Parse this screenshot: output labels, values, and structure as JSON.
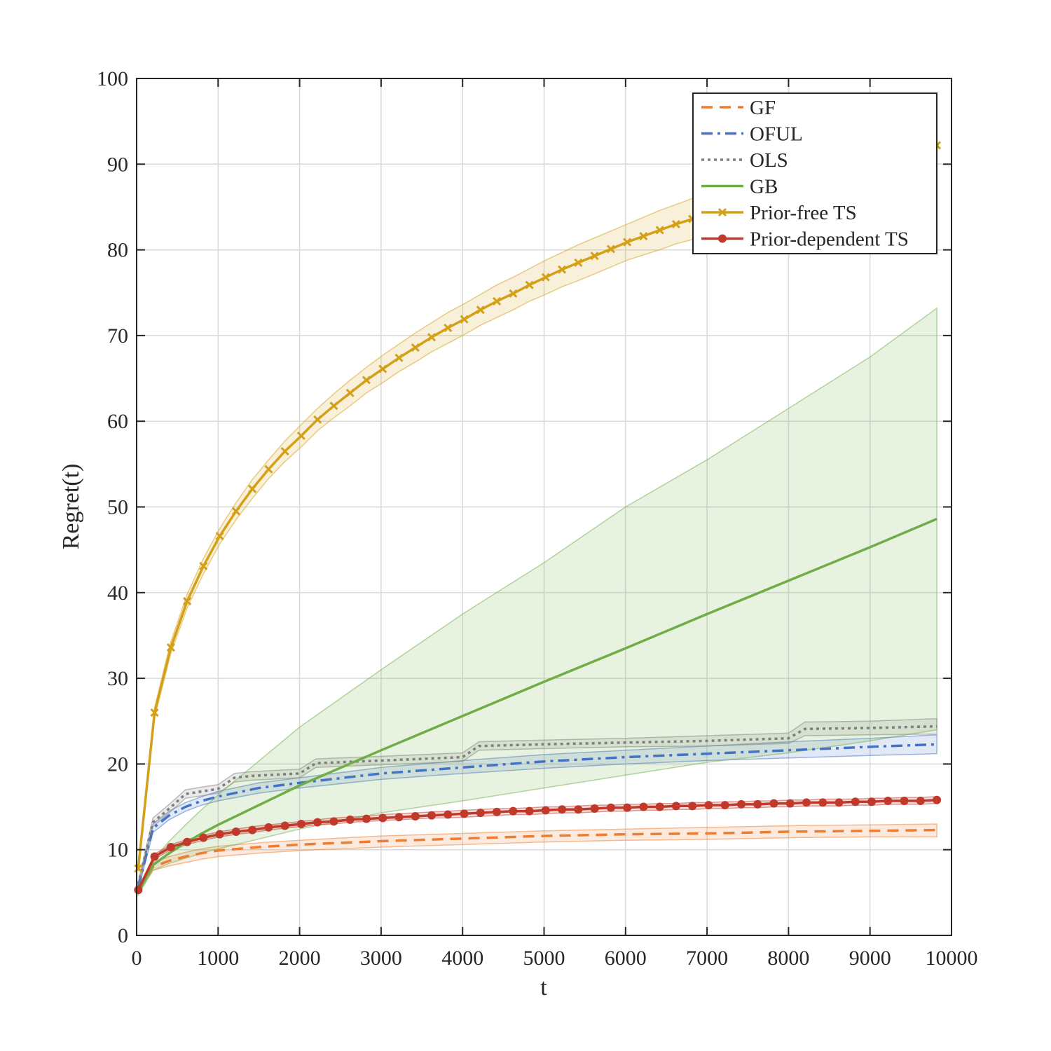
{
  "chart_data": {
    "type": "line",
    "xlabel": "t",
    "ylabel": "Regret(t)",
    "xlim": [
      0,
      10000
    ],
    "ylim": [
      0,
      100
    ],
    "xticks": [
      0,
      1000,
      2000,
      3000,
      4000,
      5000,
      6000,
      7000,
      8000,
      9000,
      10000
    ],
    "yticks": [
      0,
      10,
      20,
      30,
      40,
      50,
      60,
      70,
      80,
      90,
      100
    ],
    "xtick_labels": [
      "0",
      "1000",
      "2000",
      "3000",
      "4000",
      "5000",
      "6000",
      "7000",
      "8000",
      "9000",
      "10000"
    ],
    "ytick_labels": [
      "0",
      "10",
      "20",
      "30",
      "40",
      "50",
      "60",
      "70",
      "80",
      "90",
      "100"
    ],
    "grid": true,
    "legend_position": "top-right",
    "series": [
      {
        "name": "GF",
        "color": "#ED7D31",
        "style": "dashed",
        "marker": "none",
        "x": [
          20,
          200,
          400,
          600,
          800,
          1000,
          1500,
          2000,
          3000,
          4000,
          5000,
          6000,
          7000,
          8000,
          9000,
          9820
        ],
        "y": [
          5.2,
          8.0,
          8.7,
          9.2,
          9.6,
          9.9,
          10.3,
          10.6,
          11.0,
          11.3,
          11.6,
          11.8,
          11.9,
          12.1,
          12.2,
          12.3
        ],
        "band_upper": [
          5.4,
          8.5,
          9.2,
          9.7,
          10.1,
          10.4,
          10.8,
          11.1,
          11.6,
          11.9,
          12.2,
          12.4,
          12.6,
          12.8,
          12.9,
          13.0
        ],
        "band_lower": [
          5.0,
          7.6,
          8.1,
          8.5,
          8.9,
          9.2,
          9.6,
          9.9,
          10.3,
          10.6,
          10.9,
          11.1,
          11.2,
          11.4,
          11.5,
          11.5
        ]
      },
      {
        "name": "OFUL",
        "color": "#4472C4",
        "style": "dashdot",
        "marker": "none",
        "x": [
          20,
          200,
          400,
          600,
          800,
          1000,
          1500,
          2000,
          3000,
          4000,
          5000,
          6000,
          7000,
          8000,
          9000,
          9820
        ],
        "y": [
          5.6,
          12.5,
          14.0,
          15.0,
          15.7,
          16.2,
          17.2,
          17.8,
          18.9,
          19.6,
          20.3,
          20.8,
          21.2,
          21.6,
          22.0,
          22.3
        ],
        "band_upper": [
          5.9,
          13.0,
          14.5,
          15.5,
          16.2,
          16.8,
          17.8,
          18.4,
          19.6,
          20.4,
          21.1,
          21.6,
          22.1,
          22.6,
          23.0,
          23.4
        ],
        "band_lower": [
          5.3,
          12.0,
          13.5,
          14.5,
          15.2,
          15.7,
          16.6,
          17.2,
          18.2,
          18.9,
          19.5,
          20.0,
          20.4,
          20.7,
          21.0,
          21.2
        ]
      },
      {
        "name": "OLS",
        "color": "#7F7F7F",
        "style": "dotted",
        "marker": "none",
        "x": [
          20,
          200,
          400,
          600,
          800,
          1000,
          1200,
          1400,
          2000,
          2200,
          3000,
          4000,
          4200,
          5000,
          6000,
          7000,
          8000,
          8200,
          9000,
          9820
        ],
        "y": [
          6.0,
          13.2,
          14.8,
          16.5,
          16.8,
          17.1,
          18.4,
          18.6,
          18.9,
          20.1,
          20.4,
          20.8,
          22.1,
          22.3,
          22.5,
          22.7,
          23.0,
          24.1,
          24.2,
          24.4
        ],
        "band_upper": [
          6.3,
          13.7,
          15.3,
          17.0,
          17.3,
          17.6,
          18.9,
          19.1,
          19.4,
          20.6,
          20.9,
          21.3,
          22.6,
          22.8,
          23.0,
          23.3,
          23.6,
          24.9,
          25.0,
          25.3
        ],
        "band_lower": [
          5.7,
          12.7,
          14.3,
          16.0,
          16.3,
          16.6,
          17.9,
          18.1,
          18.4,
          19.6,
          19.9,
          20.3,
          21.6,
          21.8,
          22.0,
          22.1,
          22.4,
          23.3,
          23.4,
          23.5
        ]
      },
      {
        "name": "GB",
        "color": "#70AD47",
        "style": "solid",
        "marker": "none",
        "x": [
          20,
          200,
          400,
          600,
          800,
          1000,
          2000,
          3000,
          4000,
          5000,
          6000,
          7000,
          8000,
          9000,
          9820
        ],
        "y": [
          5.0,
          8.2,
          9.6,
          10.8,
          11.9,
          12.9,
          17.5,
          21.6,
          25.6,
          29.6,
          33.5,
          37.5,
          41.4,
          45.3,
          48.6
        ],
        "band_upper": [
          5.3,
          8.8,
          11.0,
          12.9,
          14.7,
          16.4,
          24.3,
          31.0,
          37.5,
          43.5,
          50.0,
          55.5,
          61.5,
          67.5,
          73.2
        ],
        "band_lower": [
          4.7,
          7.6,
          8.4,
          9.0,
          9.6,
          10.1,
          12.4,
          14.3,
          15.7,
          17.2,
          18.7,
          20.2,
          21.3,
          22.7,
          24.0
        ]
      },
      {
        "name": "Prior-free TS",
        "color": "#D4A017",
        "style": "solid",
        "marker": "x",
        "x": [
          20,
          220,
          420,
          620,
          820,
          1020,
          1220,
          1420,
          1620,
          1820,
          2020,
          2220,
          2420,
          2620,
          2820,
          3020,
          3220,
          3420,
          3620,
          3820,
          4020,
          4220,
          4420,
          4620,
          4820,
          5020,
          5220,
          5420,
          5620,
          5820,
          6020,
          6220,
          6420,
          6620,
          6820,
          9820
        ],
        "y": [
          7.8,
          26.0,
          33.6,
          39.0,
          43.1,
          46.6,
          49.5,
          52.1,
          54.4,
          56.5,
          58.3,
          60.2,
          61.8,
          63.3,
          64.8,
          66.1,
          67.4,
          68.6,
          69.8,
          70.9,
          71.9,
          73.0,
          74.0,
          74.9,
          75.9,
          76.8,
          77.7,
          78.5,
          79.3,
          80.1,
          80.9,
          81.6,
          82.3,
          83.0,
          83.6,
          92.2
        ],
        "band_upper": [
          8.1,
          26.6,
          34.3,
          39.8,
          44.0,
          47.5,
          50.5,
          53.2,
          55.5,
          57.7,
          59.6,
          61.5,
          63.2,
          64.8,
          66.3,
          67.7,
          69.0,
          70.3,
          71.5,
          72.7,
          73.7,
          74.8,
          75.9,
          76.8,
          77.8,
          78.8,
          79.7,
          80.6,
          81.4,
          82.2,
          83.0,
          83.8,
          84.6,
          85.3,
          86.0,
          93.8
        ],
        "band_lower": [
          7.5,
          25.4,
          32.9,
          38.2,
          42.2,
          45.7,
          48.5,
          51.0,
          53.3,
          55.3,
          57.0,
          58.9,
          60.4,
          61.8,
          63.3,
          64.5,
          65.8,
          66.9,
          68.1,
          69.1,
          70.1,
          71.2,
          72.1,
          73.0,
          74.0,
          74.8,
          75.7,
          76.4,
          77.2,
          78.0,
          78.8,
          79.4,
          80.0,
          80.7,
          81.2,
          90.6
        ]
      },
      {
        "name": "Prior-dependent TS",
        "color": "#C0392B",
        "style": "solid",
        "marker": "o",
        "x": [
          20,
          220,
          420,
          620,
          820,
          1020,
          1220,
          1420,
          1620,
          1820,
          2020,
          2220,
          2420,
          2620,
          2820,
          3020,
          3220,
          3420,
          3620,
          3820,
          4020,
          4220,
          4420,
          4620,
          4820,
          5020,
          5220,
          5420,
          5620,
          5820,
          6020,
          6220,
          6420,
          6620,
          6820,
          7020,
          7220,
          7420,
          7620,
          7820,
          8020,
          8220,
          8420,
          8620,
          8820,
          9020,
          9220,
          9420,
          9620,
          9820
        ],
        "y": [
          5.3,
          9.2,
          10.3,
          10.9,
          11.4,
          11.8,
          12.1,
          12.3,
          12.6,
          12.8,
          13.0,
          13.2,
          13.3,
          13.5,
          13.6,
          13.7,
          13.8,
          13.9,
          14.0,
          14.1,
          14.2,
          14.3,
          14.4,
          14.5,
          14.5,
          14.6,
          14.7,
          14.7,
          14.8,
          14.9,
          14.9,
          15.0,
          15.0,
          15.1,
          15.1,
          15.2,
          15.2,
          15.3,
          15.3,
          15.4,
          15.4,
          15.5,
          15.5,
          15.5,
          15.6,
          15.6,
          15.7,
          15.7,
          15.7,
          15.8
        ],
        "band_upper": [
          5.5,
          9.5,
          10.6,
          11.2,
          11.7,
          12.1,
          12.4,
          12.7,
          12.9,
          13.1,
          13.3,
          13.5,
          13.7,
          13.8,
          13.9,
          14.1,
          14.2,
          14.3,
          14.4,
          14.5,
          14.6,
          14.7,
          14.8,
          14.8,
          14.9,
          15.0,
          15.0,
          15.1,
          15.2,
          15.2,
          15.3,
          15.3,
          15.4,
          15.4,
          15.5,
          15.5,
          15.6,
          15.6,
          15.7,
          15.7,
          15.8,
          15.8,
          15.9,
          15.9,
          15.9,
          16.0,
          16.0,
          16.1,
          16.1,
          16.2
        ],
        "band_lower": [
          5.1,
          8.9,
          10.0,
          10.6,
          11.1,
          11.5,
          11.8,
          12.0,
          12.3,
          12.5,
          12.7,
          12.9,
          13.0,
          13.2,
          13.3,
          13.4,
          13.5,
          13.6,
          13.7,
          13.7,
          13.8,
          13.9,
          14.0,
          14.1,
          14.1,
          14.2,
          14.3,
          14.3,
          14.4,
          14.5,
          14.5,
          14.6,
          14.6,
          14.7,
          14.7,
          14.8,
          14.8,
          14.9,
          14.9,
          15.0,
          15.0,
          15.1,
          15.1,
          15.1,
          15.2,
          15.2,
          15.3,
          15.3,
          15.3,
          15.4
        ]
      }
    ]
  }
}
